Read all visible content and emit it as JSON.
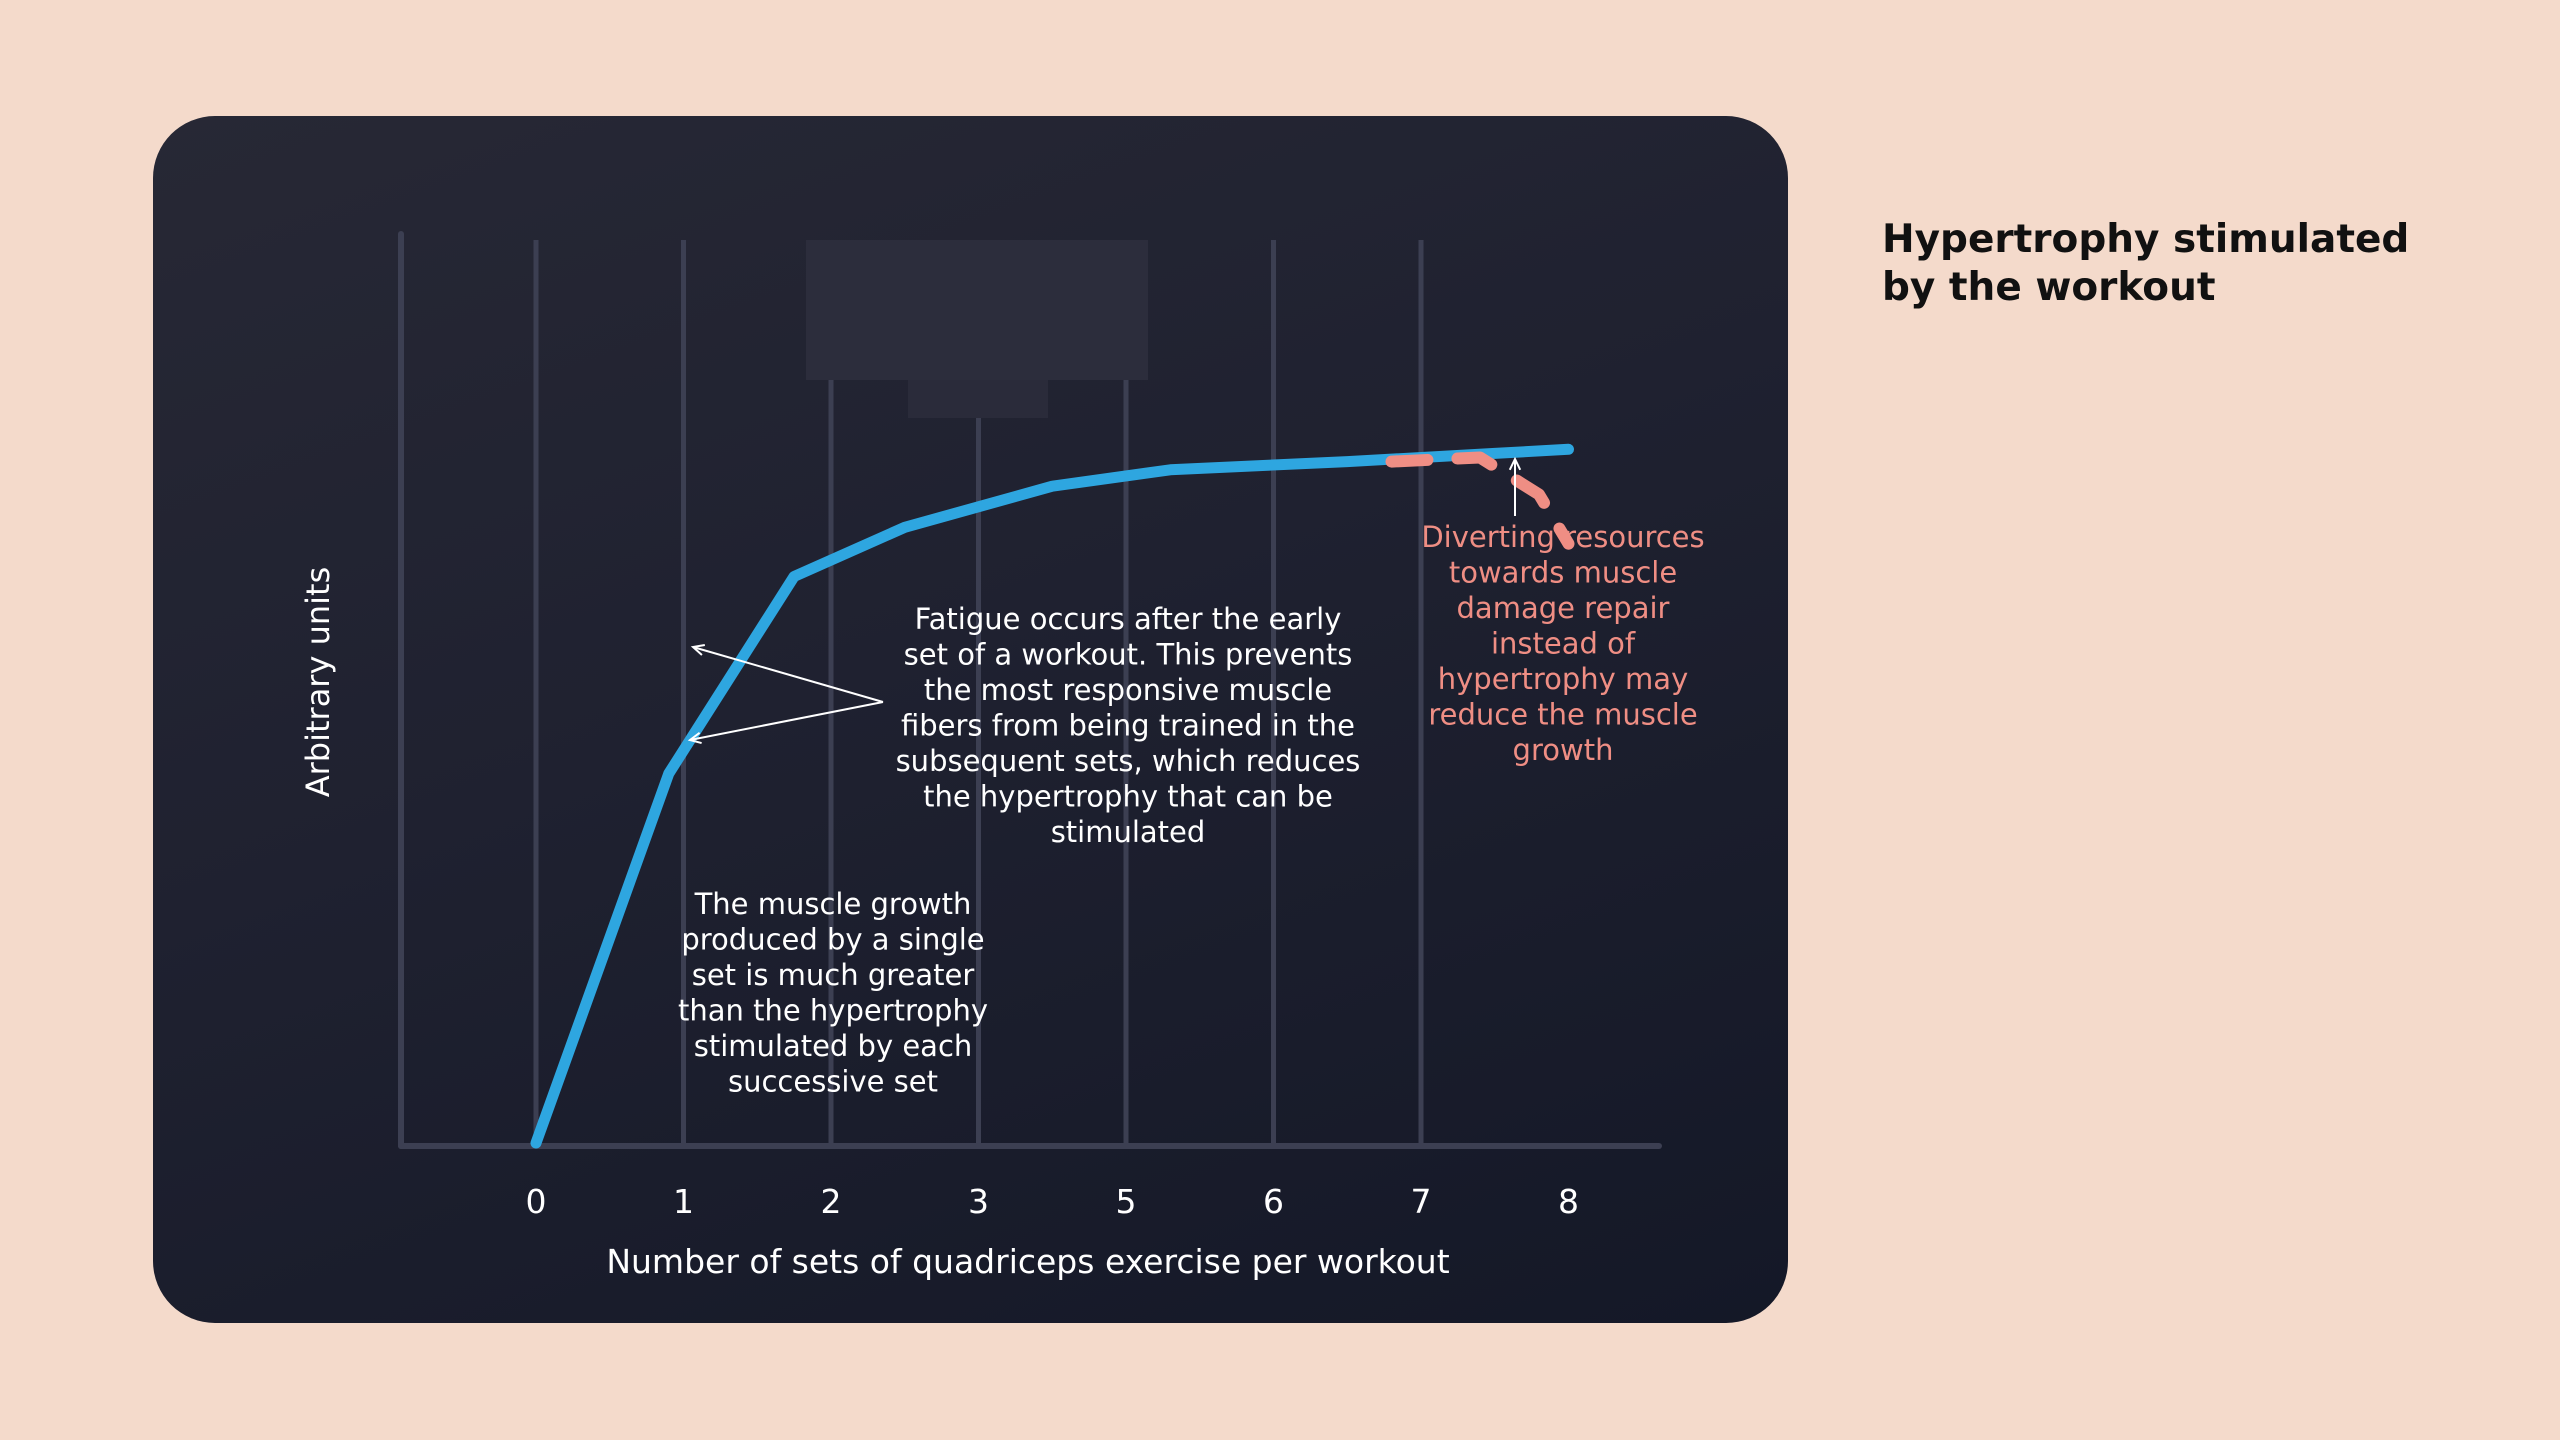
{
  "side_title": "Hypertrophy stimulated by the workout",
  "chart_data": {
    "type": "line",
    "xlabel": "Number of sets of quadriceps exercise per workout",
    "ylabel": "Arbitrary units",
    "x_tick_labels": [
      "0",
      "1",
      "2",
      "3",
      "5",
      "6",
      "7",
      "8"
    ],
    "x_positions": [
      0,
      1,
      2,
      3,
      4,
      5,
      6,
      7
    ],
    "ylim": [
      0,
      100
    ],
    "grid": "vertical",
    "series": [
      {
        "style": "solid",
        "color": "#2ea6e0",
        "x": [
          0,
          0.9,
          1.75,
          2.5,
          3.5,
          4.3,
          5.5,
          6.5,
          7
        ],
        "y": [
          0,
          45,
          69,
          75,
          80,
          82,
          83,
          84,
          84.5
        ]
      },
      {
        "style": "dashed",
        "color": "#ef8e84",
        "x": [
          5.8,
          6.4,
          6.8,
          7
        ],
        "y": [
          83,
          83.5,
          79,
          73
        ]
      }
    ],
    "annotations": [
      {
        "id": "single-set",
        "text": "The muscle growth\nproduced by a single\nset is much greater\nthan the hypertrophy\nstimulated by each\nsuccessive set",
        "color": "#ffffff"
      },
      {
        "id": "fatigue",
        "text": "Fatigue occurs after the early\nset of a workout. This prevents\nthe most responsive muscle\nfibers from being trained in the\nsubsequent sets, which reduces\nthe hypertrophy that can be\nstimulated",
        "color": "#ffffff"
      },
      {
        "id": "diverting",
        "text": "Diverting resources\ntowards muscle\ndamage repair\ninstead of\nhypertrophy may\nreduce the muscle\ngrowth",
        "color": "#ef8e84"
      }
    ]
  }
}
